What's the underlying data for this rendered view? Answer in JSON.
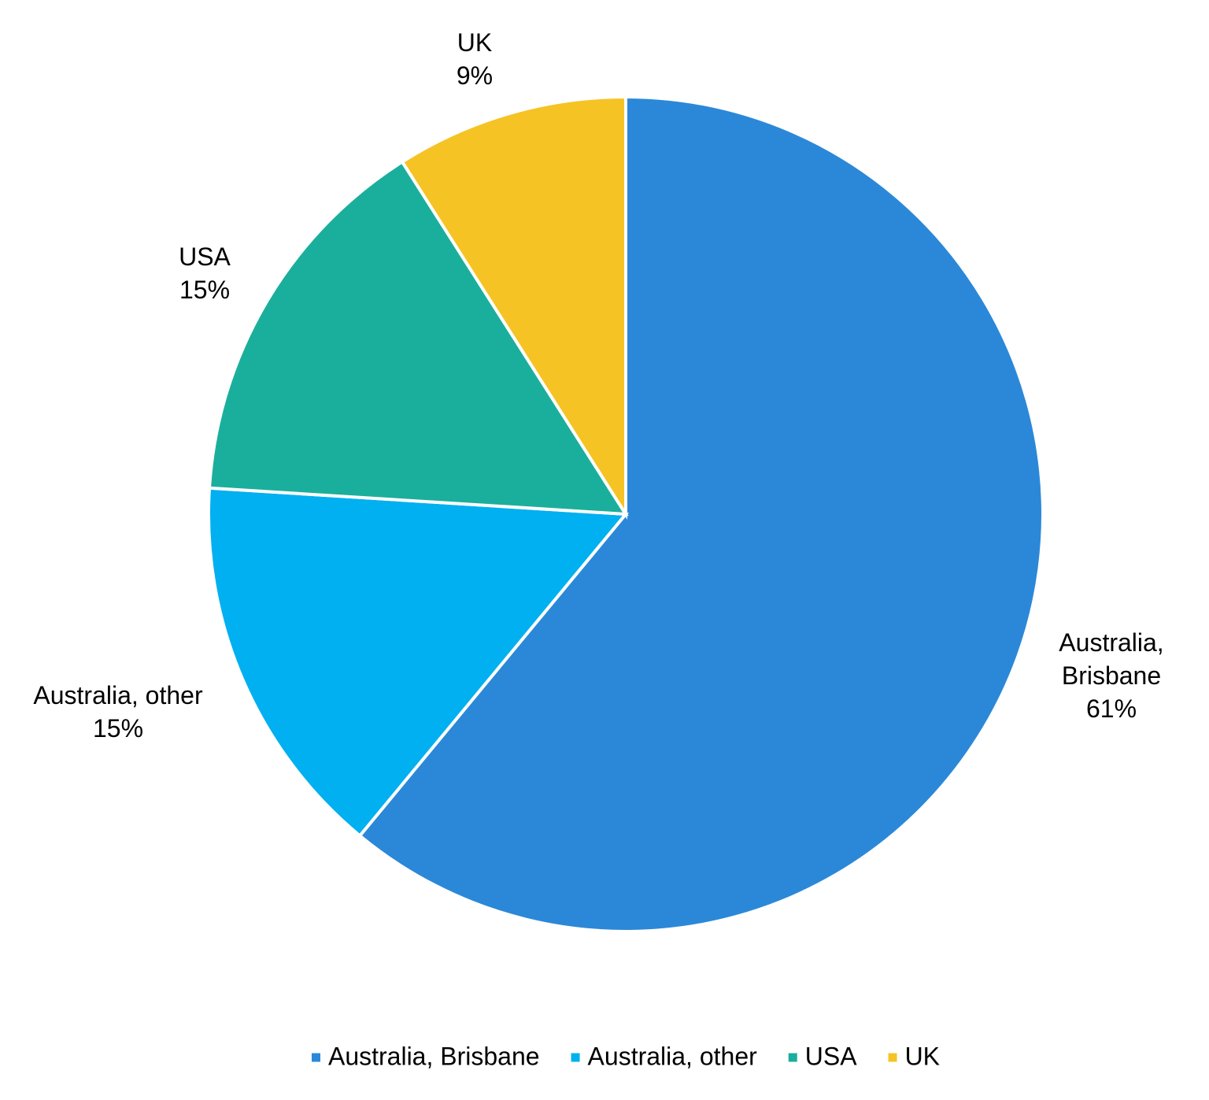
{
  "chart_data": {
    "type": "pie",
    "categories": [
      "Australia, Brisbane",
      "Australia, other",
      "USA",
      "UK"
    ],
    "values": [
      61,
      15,
      15,
      9
    ],
    "value_labels": [
      "61%",
      "15%",
      "15%",
      "9%"
    ],
    "colors": [
      "#2b88d8",
      "#00b0f0",
      "#1aaf9c",
      "#f6c325"
    ],
    "start_angle": 0,
    "direction": "clockwise",
    "legend": "bottom"
  }
}
